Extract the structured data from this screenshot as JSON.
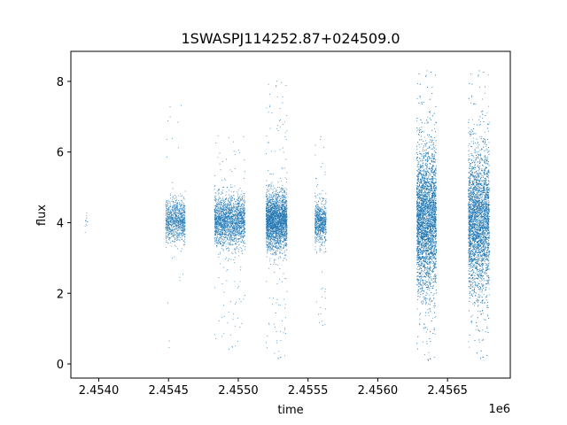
{
  "chart_data": {
    "type": "scatter",
    "title": "1SWASPJ114252.87+024509.0",
    "xlabel": "time",
    "ylabel": "flux",
    "x_offset_label": "1e6",
    "xlim": [
      2.4538,
      2.45695
    ],
    "ylim": [
      -0.4,
      8.85
    ],
    "x_ticks": [
      2.454,
      2.4545,
      2.455,
      2.4555,
      2.456,
      2.4565
    ],
    "x_tick_labels": [
      "2.4540",
      "2.4545",
      "2.4550",
      "2.4555",
      "2.4560",
      "2.4565"
    ],
    "y_ticks": [
      0,
      2,
      4,
      6,
      8
    ],
    "y_tick_labels": [
      "0",
      "2",
      "4",
      "6",
      "8"
    ],
    "grid": false,
    "point_color": "#1f77b4",
    "clusters": [
      {
        "x_start": 2.4539,
        "x_end": 2.45392,
        "center": 4.0,
        "spread": 0.2,
        "n": 12,
        "min": 3.6,
        "max": 4.35
      },
      {
        "x_start": 2.45448,
        "x_end": 2.45462,
        "center": 4.05,
        "spread": 0.3,
        "n": 900,
        "min": 0.2,
        "max": 7.5
      },
      {
        "x_start": 2.45483,
        "x_end": 2.45505,
        "center": 4.05,
        "spread": 0.35,
        "n": 2000,
        "min": 0.4,
        "max": 6.6
      },
      {
        "x_start": 2.4552,
        "x_end": 2.45535,
        "center": 4.05,
        "spread": 0.4,
        "n": 2500,
        "min": 0.05,
        "max": 8.1
      },
      {
        "x_start": 2.45555,
        "x_end": 2.45563,
        "center": 4.0,
        "spread": 0.3,
        "n": 700,
        "min": 1.0,
        "max": 6.5
      },
      {
        "x_start": 2.45628,
        "x_end": 2.45642,
        "center": 4.1,
        "spread": 1.0,
        "n": 4500,
        "min": 0.0,
        "max": 8.4
      },
      {
        "x_start": 2.45665,
        "x_end": 2.4568,
        "center": 4.05,
        "spread": 1.0,
        "n": 4000,
        "min": 0.05,
        "max": 8.4
      }
    ]
  }
}
